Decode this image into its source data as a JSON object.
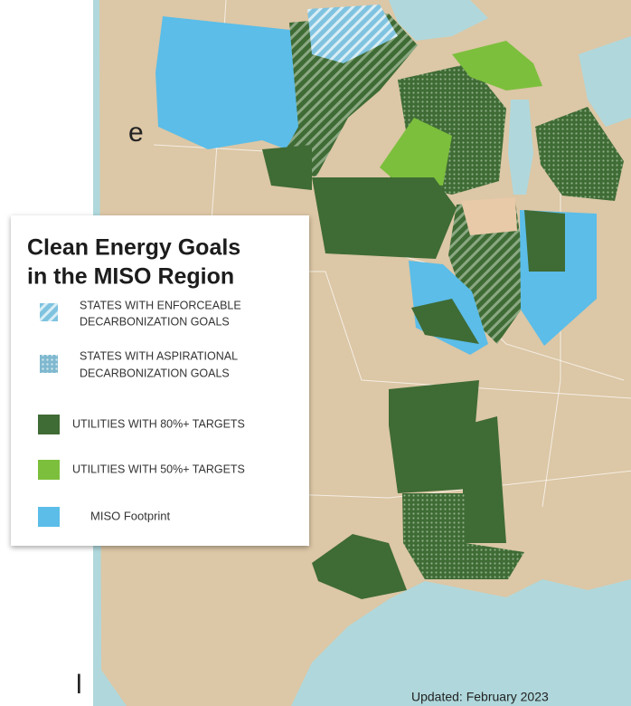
{
  "legend": {
    "title_lines": [
      "Clean Energy Goals",
      "in the MISO Region"
    ],
    "items": [
      {
        "lines": [
          "STATES WITH ENFORCEABLE",
          "DECARBONIZATION GOALS"
        ]
      },
      {
        "lines": [
          "STATES WITH ASPIRATIONAL",
          "DECARBONIZATION GOALS"
        ]
      },
      {
        "lines": [
          "UTILITIES WITH 80%+ TARGETS"
        ]
      },
      {
        "lines": [
          "UTILITIES WITH 50%+ TARGETS"
        ]
      },
      {
        "lines": [
          "MISO Footprint"
        ]
      }
    ]
  },
  "footer": "Updated: February 2023",
  "fragments": [
    "e",
    "l"
  ]
}
